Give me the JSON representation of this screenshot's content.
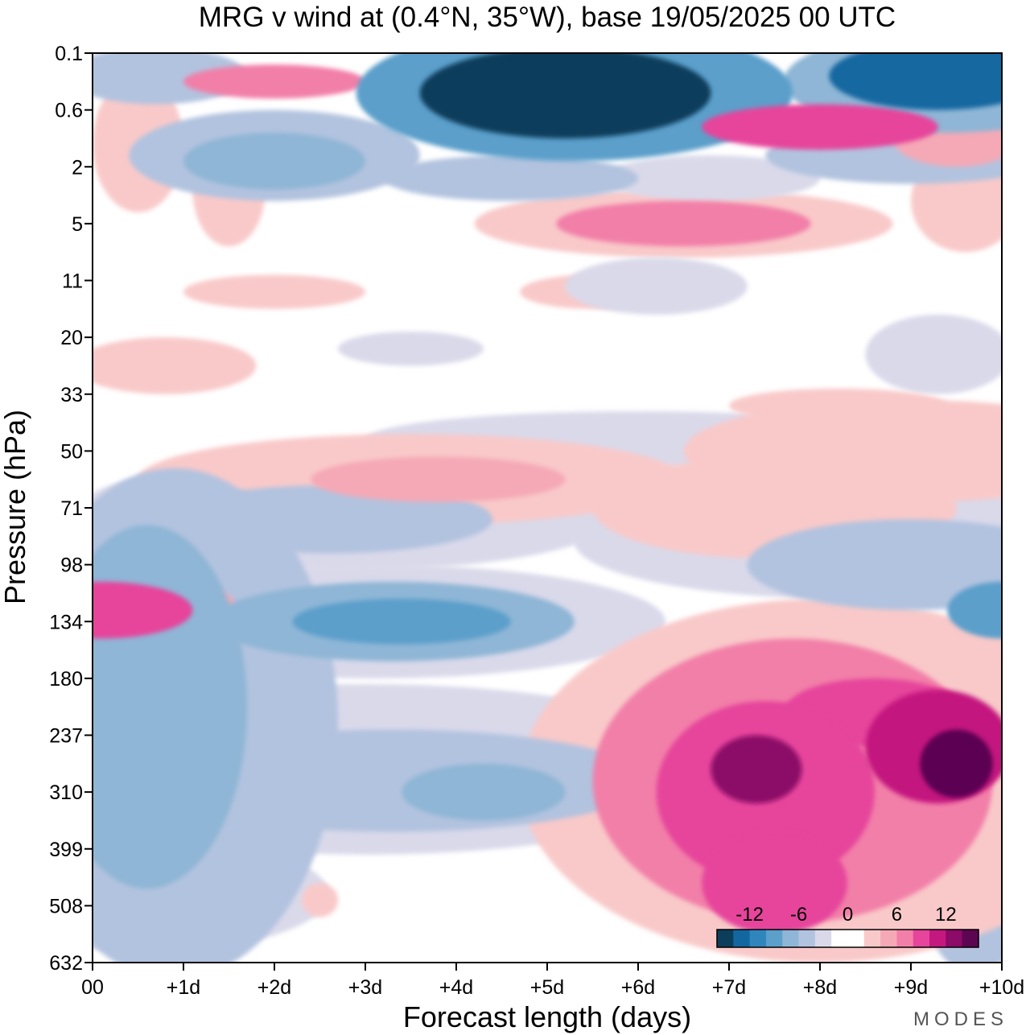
{
  "chart_data": {
    "type": "heatmap",
    "title": "MRG v wind at (0.4°N, 35°W),  base 19/05/2025  00 UTC",
    "xlabel": "Forecast length (days)",
    "ylabel": "Pressure (hPa)",
    "x_ticks": [
      "00",
      "+1d",
      "+2d",
      "+3d",
      "+4d",
      "+5d",
      "+6d",
      "+7d",
      "+8d",
      "+9d",
      "+10d"
    ],
    "y_ticks": [
      "0.1",
      "0.6",
      "2",
      "5",
      "11",
      "20",
      "33",
      "50",
      "71",
      "98",
      "134",
      "180",
      "237",
      "310",
      "399",
      "508",
      "632"
    ],
    "xlim_days": [
      0,
      10
    ],
    "colorbar": {
      "ticks": [
        "-12",
        "-6",
        "0",
        "6",
        "12"
      ],
      "colors": [
        "#0c3e5c",
        "#1367a0",
        "#2f86bd",
        "#5b9fcb",
        "#8fb6d6",
        "#b2c3df",
        "#d9d9ea",
        "#ffffff",
        "#ffffff",
        "#f9c9c9",
        "#f5a9b6",
        "#f27fa8",
        "#e6459b",
        "#c4187f",
        "#8c0a68",
        "#5c0652"
      ]
    },
    "brand": "MODES",
    "features": [
      {
        "x": 0.6,
        "y": 11.5,
        "rx": 1.1,
        "ry": 3.2,
        "v": -7
      },
      {
        "x": 0.9,
        "y": 11.8,
        "rx": 1.8,
        "ry": 4.5,
        "v": -4
      },
      {
        "x": 1.3,
        "y": 10.8,
        "rx": 0.9,
        "ry": 0.8,
        "v": -3
      },
      {
        "x": 0.6,
        "y": 14.8,
        "rx": 2.0,
        "ry": 1.0,
        "v": -3
      },
      {
        "x": 3.4,
        "y": 10.0,
        "rx": 1.2,
        "ry": 0.4,
        "v": -9
      },
      {
        "x": 3.3,
        "y": 10.0,
        "rx": 2.0,
        "ry": 0.7,
        "v": -6
      },
      {
        "x": 3.1,
        "y": 10.0,
        "rx": 3.2,
        "ry": 1.0,
        "v": -3
      },
      {
        "x": 4.3,
        "y": 13.0,
        "rx": 0.9,
        "ry": 0.5,
        "v": -7
      },
      {
        "x": 3.3,
        "y": 12.8,
        "rx": 2.8,
        "ry": 0.9,
        "v": -5
      },
      {
        "x": 3.0,
        "y": 12.6,
        "rx": 4.0,
        "ry": 1.5,
        "v": -3
      },
      {
        "x": 2.6,
        "y": 8.2,
        "rx": 1.8,
        "ry": 0.6,
        "v": -5
      },
      {
        "x": 2.8,
        "y": 8.1,
        "rx": 3.0,
        "ry": 1.0,
        "v": -3
      },
      {
        "x": 10.0,
        "y": 9.8,
        "rx": 0.6,
        "ry": 0.5,
        "v": -8
      },
      {
        "x": 9.0,
        "y": 9.0,
        "rx": 1.8,
        "ry": 0.8,
        "v": -5
      },
      {
        "x": 8.3,
        "y": 8.6,
        "rx": 3.0,
        "ry": 1.0,
        "v": -3
      },
      {
        "x": 6.0,
        "y": 6.8,
        "rx": 3.0,
        "ry": 0.5,
        "v": -3
      },
      {
        "x": 9.7,
        "y": 14.6,
        "rx": 0.6,
        "ry": 1.6,
        "v": -4
      },
      {
        "x": 0.1,
        "y": 9.8,
        "rx": 1.0,
        "ry": 0.5,
        "v": 9
      },
      {
        "x": 0.2,
        "y": 9.8,
        "rx": 1.4,
        "ry": 0.7,
        "v": 5
      },
      {
        "x": 3.8,
        "y": 7.5,
        "rx": 1.4,
        "ry": 0.4,
        "v": 6
      },
      {
        "x": 3.5,
        "y": 7.5,
        "rx": 3.0,
        "ry": 0.8,
        "v": 3
      },
      {
        "x": 7.5,
        "y": 8.0,
        "rx": 2.0,
        "ry": 0.9,
        "v": 3
      },
      {
        "x": 9.0,
        "y": 7.0,
        "rx": 2.5,
        "ry": 0.9,
        "v": 3
      },
      {
        "x": 7.3,
        "y": 12.6,
        "rx": 0.5,
        "ry": 0.6,
        "v": 14
      },
      {
        "x": 9.5,
        "y": 12.5,
        "rx": 0.4,
        "ry": 0.6,
        "v": 17
      },
      {
        "x": 9.3,
        "y": 12.2,
        "rx": 0.8,
        "ry": 1.0,
        "v": 11
      },
      {
        "x": 8.6,
        "y": 11.6,
        "rx": 1.0,
        "ry": 0.6,
        "v": 10
      },
      {
        "x": 7.4,
        "y": 13.0,
        "rx": 1.2,
        "ry": 1.6,
        "v": 10
      },
      {
        "x": 7.5,
        "y": 14.6,
        "rx": 0.8,
        "ry": 0.9,
        "v": 10
      },
      {
        "x": 7.7,
        "y": 12.8,
        "rx": 2.2,
        "ry": 2.5,
        "v": 7
      },
      {
        "x": 8.0,
        "y": 12.8,
        "rx": 3.3,
        "ry": 3.2,
        "v": 4
      },
      {
        "x": 2.5,
        "y": 14.9,
        "rx": 0.2,
        "ry": 0.3,
        "v": 3
      },
      {
        "x": 2.0,
        "y": 1.9,
        "rx": 1.0,
        "ry": 0.5,
        "v": -7
      },
      {
        "x": 2.0,
        "y": 1.8,
        "rx": 1.6,
        "ry": 0.8,
        "v": -4
      },
      {
        "x": 0.7,
        "y": 0.4,
        "rx": 1.0,
        "ry": 0.5,
        "v": -5
      },
      {
        "x": 5.2,
        "y": 0.7,
        "rx": 1.6,
        "ry": 0.8,
        "v": -14
      },
      {
        "x": 5.3,
        "y": 0.7,
        "rx": 2.4,
        "ry": 1.2,
        "v": -8
      },
      {
        "x": 9.3,
        "y": 0.4,
        "rx": 1.2,
        "ry": 0.6,
        "v": -13
      },
      {
        "x": 9.4,
        "y": 0.5,
        "rx": 1.8,
        "ry": 0.9,
        "v": -7
      },
      {
        "x": 5.5,
        "y": 0.5,
        "rx": 0.25,
        "ry": 0.2,
        "v": 13
      },
      {
        "x": 2.0,
        "y": 0.5,
        "rx": 1.0,
        "ry": 0.3,
        "v": 7
      },
      {
        "x": 8.0,
        "y": 1.3,
        "rx": 1.3,
        "ry": 0.4,
        "v": 9
      },
      {
        "x": 9.5,
        "y": 1.5,
        "rx": 0.7,
        "ry": 0.5,
        "v": 6
      },
      {
        "x": 6.5,
        "y": 3.0,
        "rx": 1.4,
        "ry": 0.4,
        "v": 8
      },
      {
        "x": 6.5,
        "y": 3.0,
        "rx": 2.3,
        "ry": 0.6,
        "v": 3
      },
      {
        "x": 0.5,
        "y": 1.6,
        "rx": 0.5,
        "ry": 1.2,
        "v": 3
      },
      {
        "x": 1.5,
        "y": 2.4,
        "rx": 0.4,
        "ry": 1.0,
        "v": 3
      },
      {
        "x": 9.6,
        "y": 2.6,
        "rx": 0.6,
        "ry": 0.9,
        "v": 4
      },
      {
        "x": 4.6,
        "y": 2.2,
        "rx": 1.4,
        "ry": 0.4,
        "v": -4
      },
      {
        "x": 9.0,
        "y": 1.8,
        "rx": 1.6,
        "ry": 0.5,
        "v": -4
      },
      {
        "x": 6.8,
        "y": 2.2,
        "rx": 1.2,
        "ry": 0.4,
        "v": -3
      },
      {
        "x": 0.8,
        "y": 5.5,
        "rx": 1.0,
        "ry": 0.5,
        "v": 3
      },
      {
        "x": 5.5,
        "y": 4.2,
        "rx": 0.8,
        "ry": 0.3,
        "v": 3
      },
      {
        "x": 6.2,
        "y": 4.1,
        "rx": 1.0,
        "ry": 0.5,
        "v": -3
      },
      {
        "x": 9.3,
        "y": 5.3,
        "rx": 0.8,
        "ry": 0.7,
        "v": -3
      },
      {
        "x": 8.2,
        "y": 6.2,
        "rx": 1.2,
        "ry": 0.3,
        "v": 3
      },
      {
        "x": 2.0,
        "y": 4.2,
        "rx": 1.0,
        "ry": 0.3,
        "v": 3
      },
      {
        "x": 3.5,
        "y": 5.2,
        "rx": 0.8,
        "ry": 0.3,
        "v": -3
      }
    ]
  }
}
